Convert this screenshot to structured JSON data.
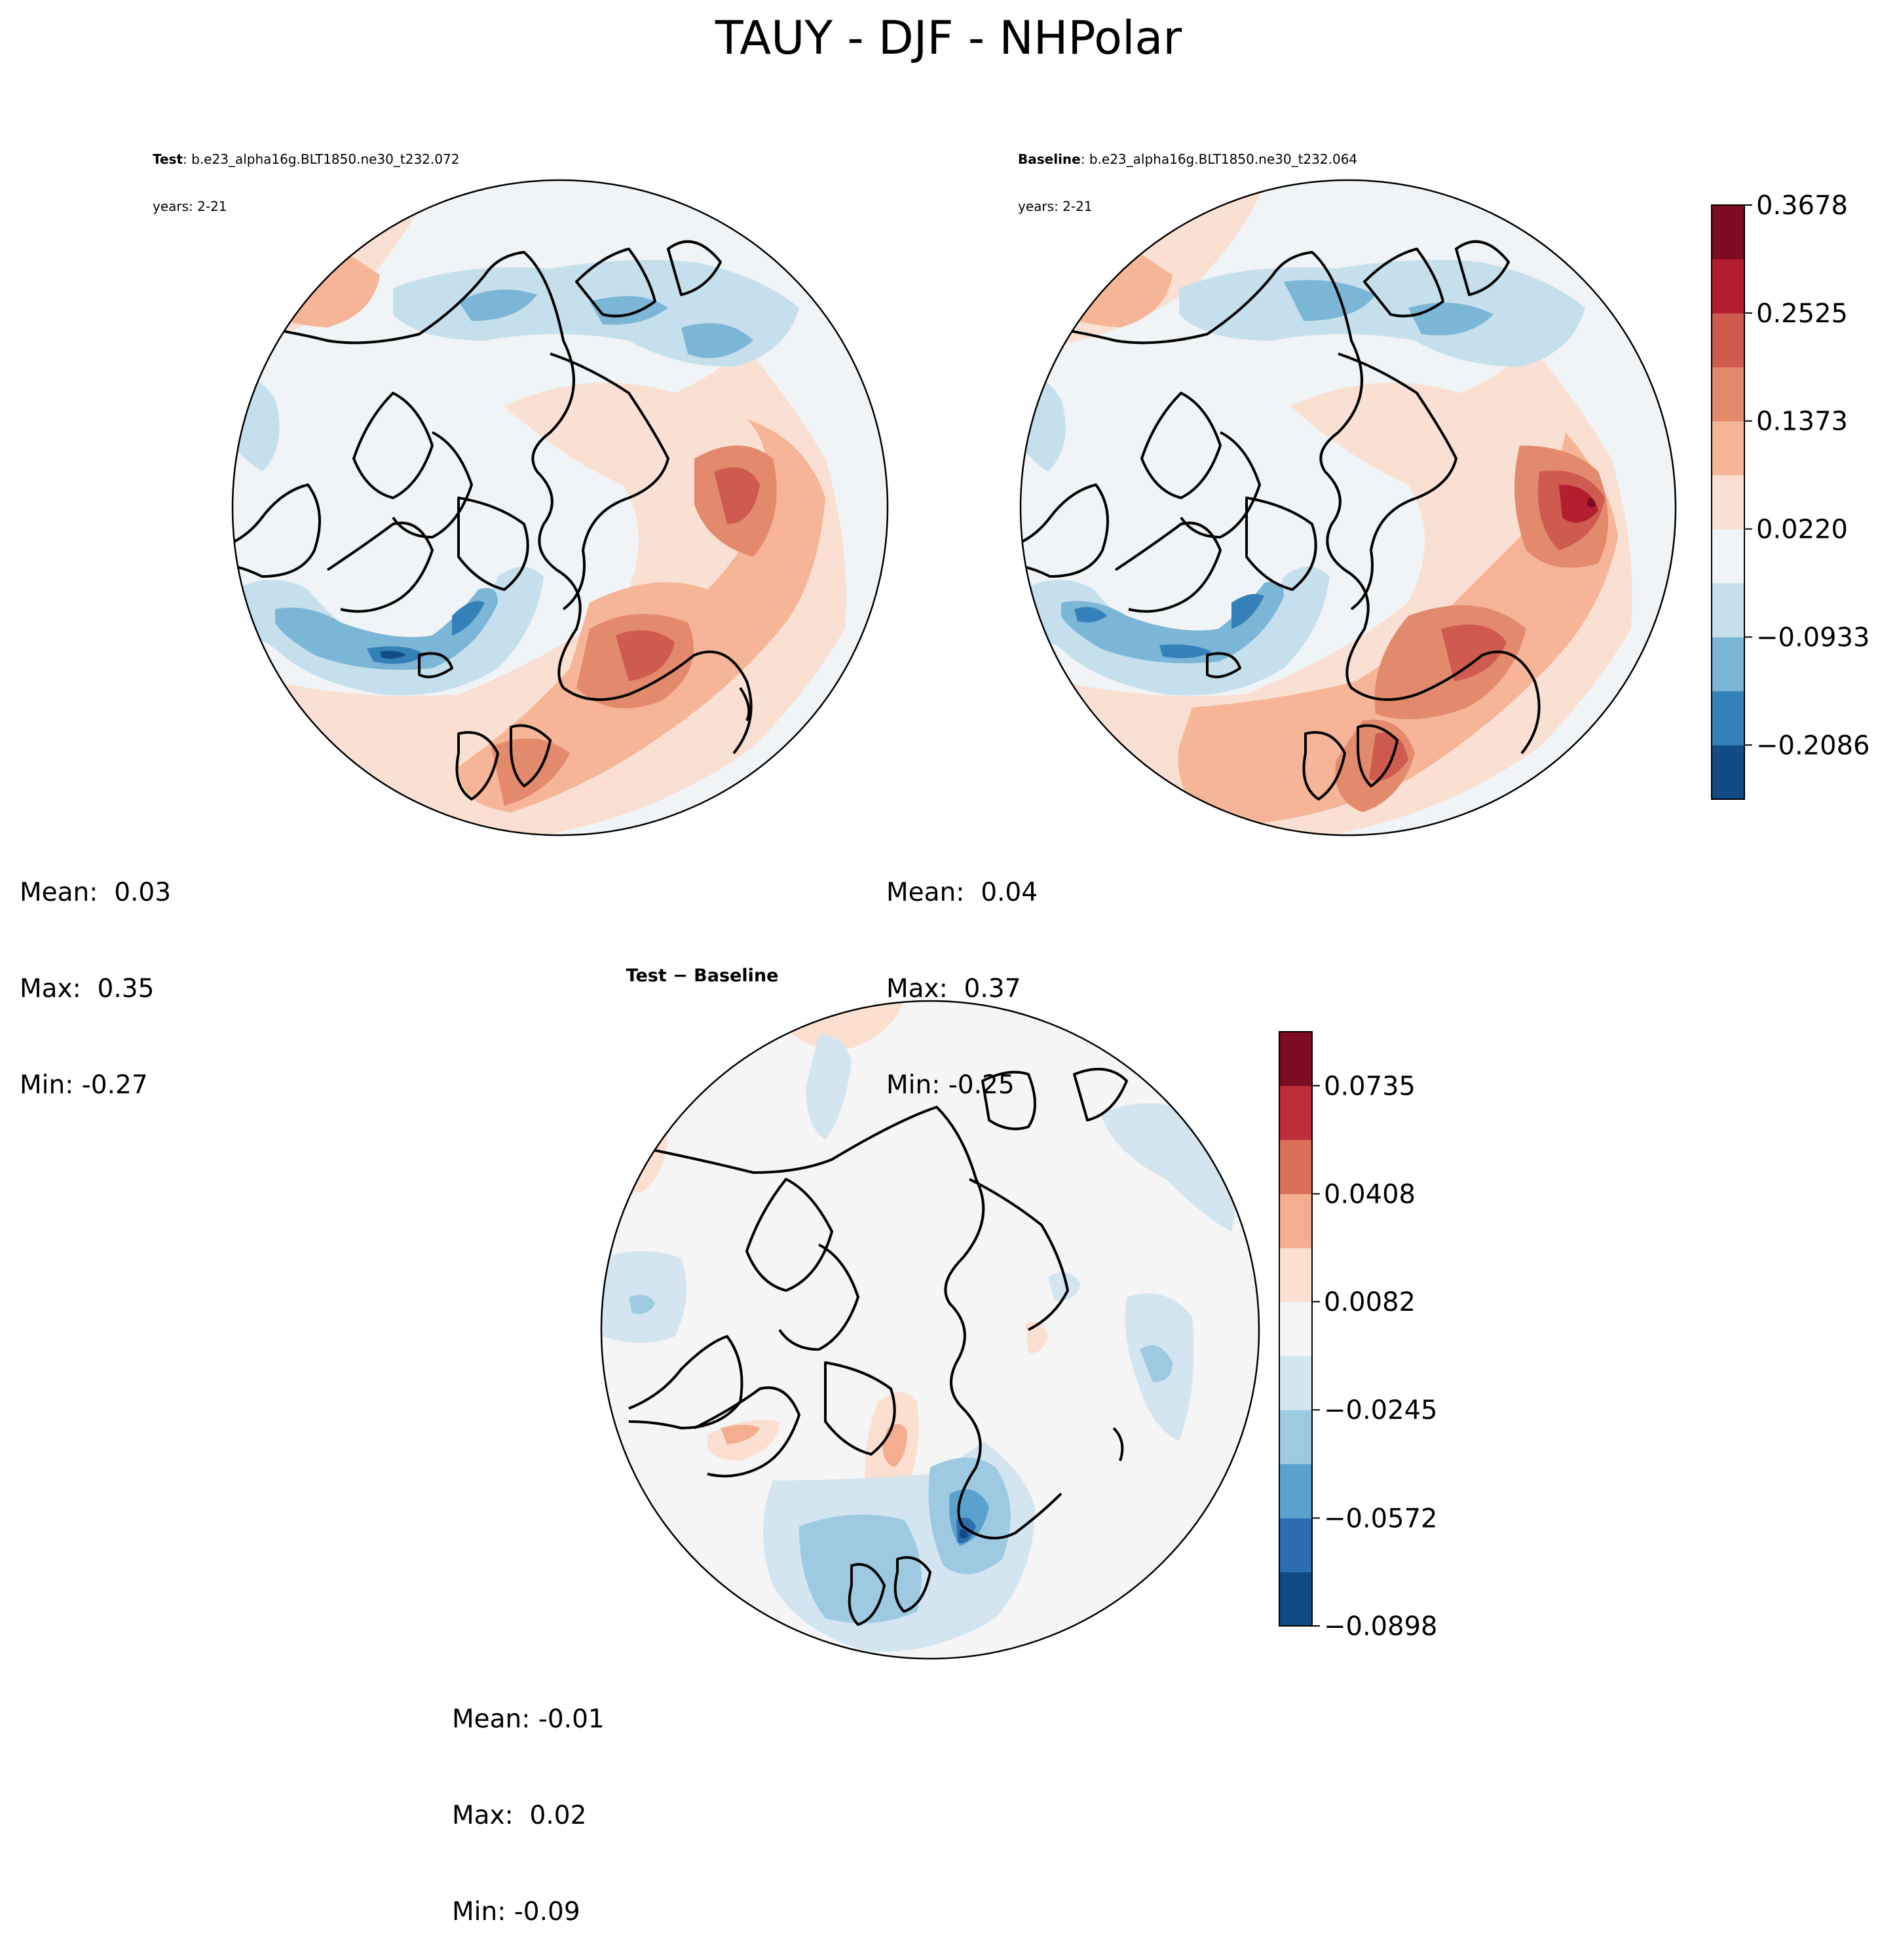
{
  "chart_data": [
    {
      "type": "map",
      "projection": "north-polar-stereographic",
      "title": "TAUY - DJF - NHPolar",
      "panel": "test",
      "label_bold": "Test",
      "case": "b.e23_alpha16g.BLT1850.ne30_t232.072",
      "years": "years: 2-21",
      "stats": {
        "mean": "Mean:  0.03",
        "max": "Max:  0.35",
        "min": "Min: -0.27"
      },
      "value_range": [
        -0.27,
        0.35
      ]
    },
    {
      "type": "map",
      "projection": "north-polar-stereographic",
      "panel": "baseline",
      "label_bold": "Baseline",
      "case": "b.e23_alpha16g.BLT1850.ne30_t232.064",
      "years": "years: 2-21",
      "stats": {
        "mean": "Mean:  0.04",
        "max": "Max:  0.37",
        "min": "Min: -0.25"
      },
      "value_range": [
        -0.25,
        0.37
      ],
      "colorbar": {
        "levels": [
          -0.2664,
          -0.2086,
          -0.1509,
          -0.0933,
          -0.0356,
          0.022,
          0.0797,
          0.1373,
          0.1949,
          0.2525,
          0.3102,
          0.3678
        ],
        "tick_labels": [
          "−0.2086",
          "−0.0933",
          "0.0220",
          "0.1373",
          "0.2525",
          "0.3678"
        ],
        "tick_values": [
          -0.2086,
          -0.0933,
          0.022,
          0.1373,
          0.2525,
          0.3678
        ],
        "colors": [
          "#134b87",
          "#3480b9",
          "#7bb6d6",
          "#c6dfed",
          "#f1f4f6",
          "#f9e0d3",
          "#f6b596",
          "#e38a6d",
          "#cf5a4e",
          "#b31f2e",
          "#7d0b22"
        ]
      }
    },
    {
      "type": "map",
      "projection": "north-polar-stereographic",
      "panel": "difference",
      "title": "Test − Baseline",
      "stats": {
        "mean": "Mean: -0.01",
        "max": "Max:  0.02",
        "min": "Min: -0.09"
      },
      "value_range": [
        -0.09,
        0.02
      ],
      "colorbar": {
        "levels": [
          -0.0898,
          -0.0735,
          -0.0572,
          -0.0408,
          -0.0245,
          -0.0082,
          0.0082,
          0.0245,
          0.0408,
          0.0572,
          0.0735,
          0.0898
        ],
        "tick_labels": [
          "−0.0898",
          "−0.0572",
          "−0.0245",
          "0.0082",
          "0.0408",
          "0.0735"
        ],
        "tick_values": [
          -0.0898,
          -0.0572,
          -0.0245,
          0.0082,
          0.0408,
          0.0735
        ],
        "colors": [
          "#0f4a85",
          "#2c6eb0",
          "#5aa2cd",
          "#9dcae1",
          "#d3e5f1",
          "#f5f5f5",
          "#fbe0d2",
          "#f4ae8f",
          "#dc6f5a",
          "#bc2d37",
          "#7d0b22"
        ]
      }
    }
  ]
}
